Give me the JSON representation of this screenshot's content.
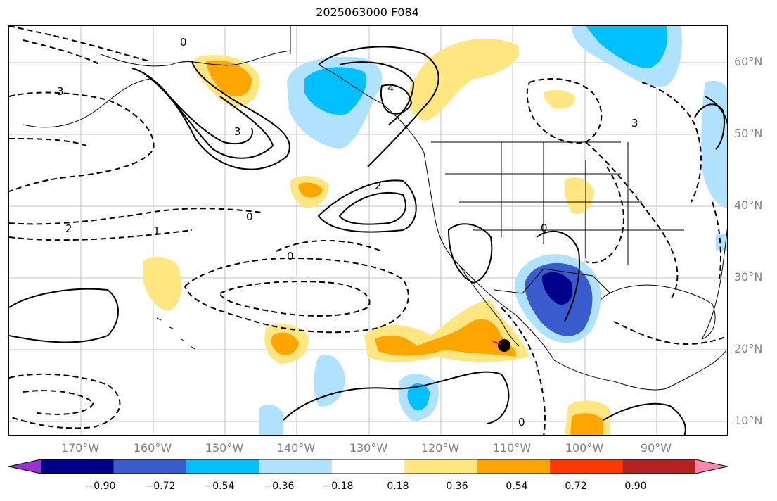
{
  "title": "2025063000 F084",
  "lat_labels": [
    "60°N",
    "50°N",
    "40°N",
    "30°N",
    "20°N",
    "10°N"
  ],
  "lon_labels": [
    "170°W",
    "160°W",
    "150°W",
    "140°W",
    "130°W",
    "120°W",
    "110°W",
    "100°W",
    "90°W"
  ],
  "colorbar": {
    "labels": [
      "−0.90",
      "−0.72",
      "−0.54",
      "−0.36",
      "−0.18",
      "0.18",
      "0.36",
      "0.54",
      "0.72",
      "0.90"
    ],
    "colors": [
      "#9b30d0",
      "#00008b",
      "#3a5bcc",
      "#00bfff",
      "#b0e2ff",
      "#ffffff",
      "#ffe680",
      "#ffa500",
      "#ff3800",
      "#b22222",
      "#ff88aa"
    ]
  },
  "contour_labels": {
    "alaska_center": "4",
    "aleutian_center": "3",
    "pac_low": "2",
    "zero_a": "0",
    "zero_b": "0",
    "zero_c": "0",
    "neg_1a": "1",
    "neg_2": "2",
    "neg_3": "3",
    "sw_low": "0",
    "east_low": "3",
    "south_0": "0"
  }
}
